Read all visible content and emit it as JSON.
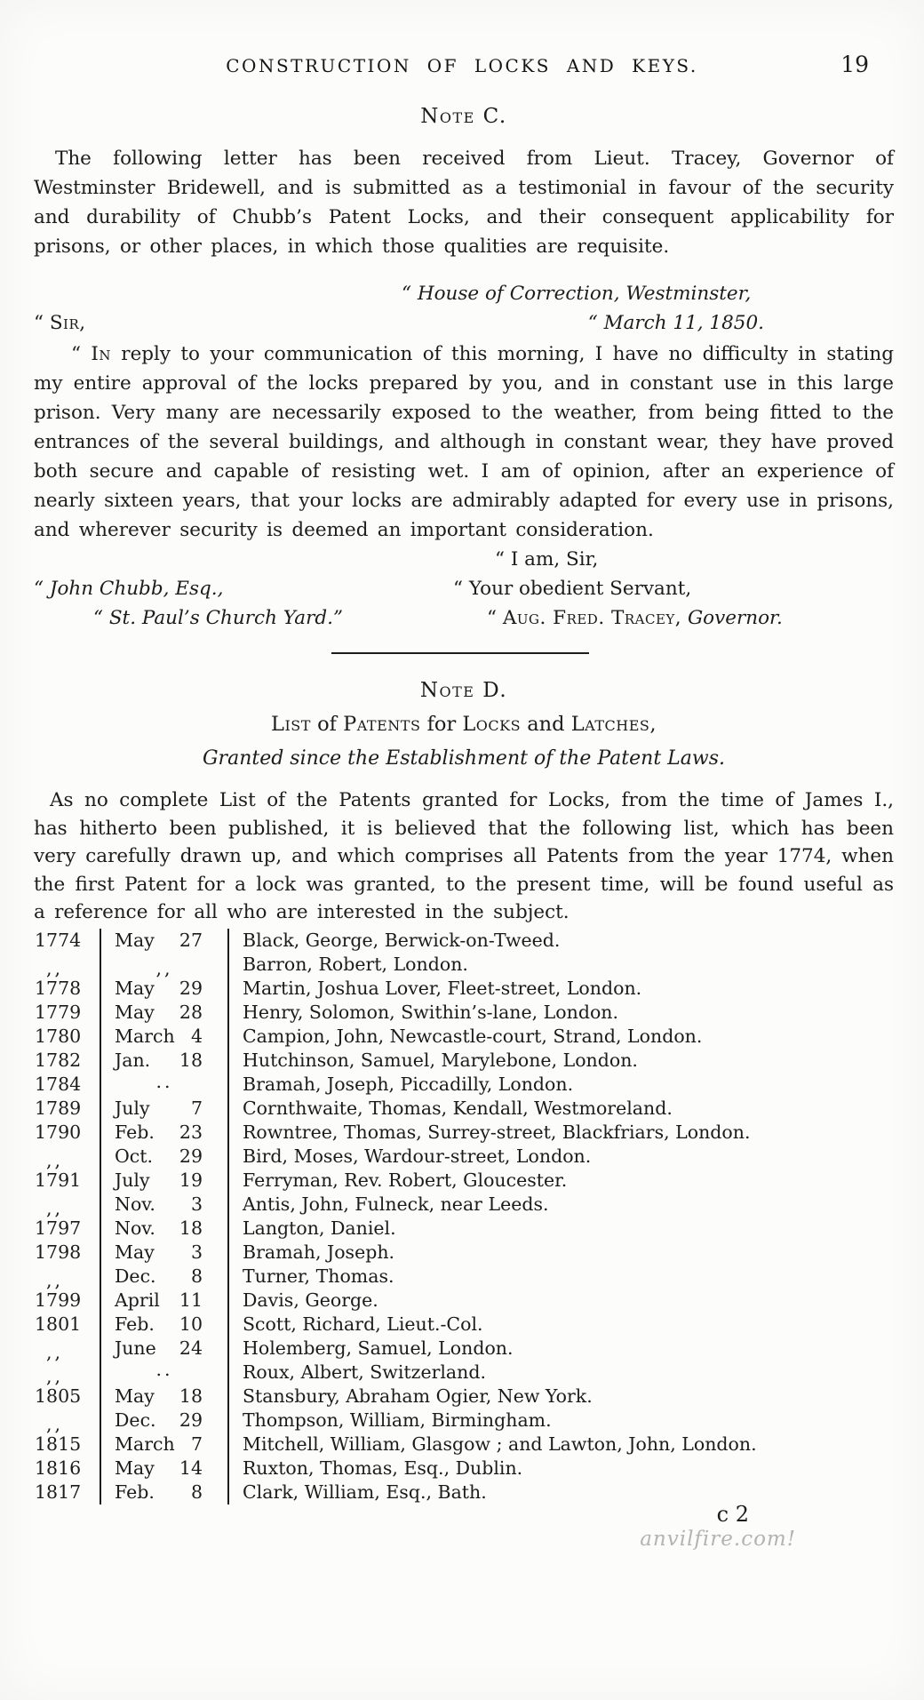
{
  "page": {
    "running_head": "CONSTRUCTION OF LOCKS AND KEYS.",
    "page_number": "19"
  },
  "colors": {
    "paper": "#fcfcfb",
    "ink": "#1c1c1c",
    "watermark_gray": "#b3b3b3"
  },
  "note_c": {
    "heading": "Note C.",
    "intro": "The following letter has been received from Lieut. Tracey, Governor of Westminster Bridewell, and is submitted as a testimonial in favour of the security and durability of Chubb’s Patent Locks, and their consequent applicability for prisons, or other places, in which those qualities are requisite.",
    "letter": {
      "place_line": "“ House of Correction, Westminster,",
      "salutation_segments": [
        {
          "text": "“ "
        },
        {
          "text": "Sir,",
          "sc": true
        }
      ],
      "date_line": "“ March 11, 1850.",
      "body_segments": [
        {
          "text": "“ "
        },
        {
          "text": "In",
          "sc": true
        },
        {
          "text": " reply to your communication of this morning, I have no difficulty in stating my entire approval of the locks prepared by you, and in constant use in this large prison.  Very many are necessarily exposed to the weather, from being fitted to the entrances of the several buildings, and although in constant wear, they have proved both secure and capable of resisting wet.  I am of opinion, after an experience of nearly sixteen years, that your locks are admirably adapted for every use in prisons, and wherever security is deemed an important consideration."
        }
      ],
      "valediction": "“ I am, Sir,",
      "addressee_name": "“ John Chubb, Esq.,",
      "servant_line": "“ Your obedient Servant,",
      "addressee_address": "“ St. Paul’s Church Yard.”",
      "signature_segments": [
        {
          "text": "“ "
        },
        {
          "text": "Aug. Fred. Tracey,",
          "sc": true
        },
        {
          "text": " "
        },
        {
          "text": "Governor.",
          "italic": true
        }
      ]
    }
  },
  "note_d": {
    "heading": "Note D.",
    "title_segments": [
      {
        "text": "List",
        "sc": true
      },
      {
        "text": " of "
      },
      {
        "text": "Patents",
        "sc": true
      },
      {
        "text": " for "
      },
      {
        "text": "Locks",
        "sc": true
      },
      {
        "text": " and "
      },
      {
        "text": "Latches,",
        "sc": true
      }
    ],
    "subtitle": "Granted since the Establishment of the Patent Laws.",
    "intro": "As no complete List of the Patents granted for Locks, from the time of James I., has hitherto been published, it is believed that the following list, which has been very carefully drawn up, and which comprises all Patents from the year 1774, when the first Patent for a lock was granted, to the present time, will be found useful as a reference for all who are interested in the subject.",
    "patents": [
      {
        "year": "1774",
        "month": "May",
        "day": "27",
        "name": "Black, George, Berwick-on-Tweed."
      },
      {
        "year": ",,",
        "month": ",,",
        "day": "",
        "name": "Barron, Robert, London."
      },
      {
        "year": "1778",
        "month": "May",
        "day": "29",
        "name": "Martin, Joshua Lover, Fleet-street, London."
      },
      {
        "year": "1779",
        "month": "May",
        "day": "28",
        "name": "Henry, Solomon, Swithin’s-lane, London."
      },
      {
        "year": "1780",
        "month": "March",
        "day": "4",
        "name": "Campion, John, Newcastle-court, Strand, London."
      },
      {
        "year": "1782",
        "month": "Jan.",
        "day": "18",
        "name": "Hutchinson, Samuel, Marylebone, London."
      },
      {
        "year": "1784",
        "month": "..",
        "day": "",
        "name": "Bramah, Joseph, Piccadilly, London."
      },
      {
        "year": "1789",
        "month": "July",
        "day": "7",
        "name": "Cornthwaite, Thomas, Kendall, Westmoreland."
      },
      {
        "year": "1790",
        "month": "Feb.",
        "day": "23",
        "name": "Rowntree, Thomas, Surrey-street, Blackfriars, London."
      },
      {
        "year": ",,",
        "month": "Oct.",
        "day": "29",
        "name": "Bird, Moses, Wardour-street, London."
      },
      {
        "year": "1791",
        "month": "July",
        "day": "19",
        "name": "Ferryman, Rev. Robert, Gloucester."
      },
      {
        "year": ",,",
        "month": "Nov.",
        "day": "3",
        "name": "Antis, John, Fulneck, near Leeds."
      },
      {
        "year": "1797",
        "month": "Nov.",
        "day": "18",
        "name": "Langton, Daniel."
      },
      {
        "year": "1798",
        "month": "May",
        "day": "3",
        "name": "Bramah, Joseph."
      },
      {
        "year": ",,",
        "month": "Dec.",
        "day": "8",
        "name": "Turner, Thomas."
      },
      {
        "year": "1799",
        "month": "April",
        "day": "11",
        "name": "Davis, George."
      },
      {
        "year": "1801",
        "month": "Feb.",
        "day": "10",
        "name": "Scott, Richard, Lieut.-Col."
      },
      {
        "year": ",,",
        "month": "June",
        "day": "24",
        "name": "Holemberg, Samuel, London."
      },
      {
        "year": ",,",
        "month": "..",
        "day": "",
        "name": "Roux, Albert, Switzerland."
      },
      {
        "year": "1805",
        "month": "May",
        "day": "18",
        "name": "Stansbury, Abraham Ogier, New York."
      },
      {
        "year": ",,",
        "month": "Dec.",
        "day": "29",
        "name": "Thompson, William, Birmingham."
      },
      {
        "year": "1815",
        "month": "March",
        "day": "7",
        "name": "Mitchell, William, Glasgow ; and Lawton, John, London."
      },
      {
        "year": "1816",
        "month": "May",
        "day": "14",
        "name": "Ruxton, Thomas, Esq., Dublin."
      },
      {
        "year": "1817",
        "month": "Feb.",
        "day": "8",
        "name": "Clark, William, Esq., Bath."
      }
    ]
  },
  "footer": {
    "signature_mark": "c 2",
    "watermark": "anvilfire.com!"
  }
}
